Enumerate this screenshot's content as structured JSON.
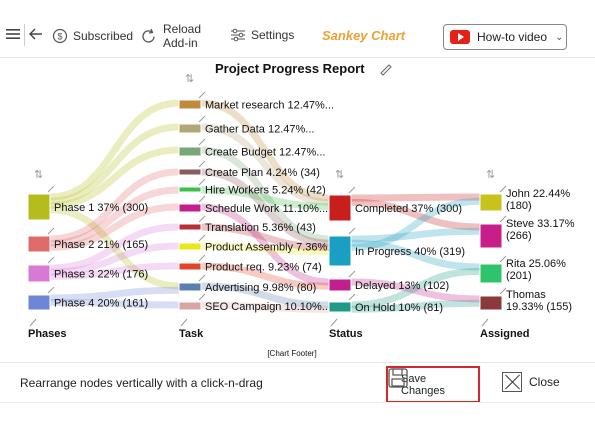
{
  "toolbar": {
    "subscribed_label": "Subscribed",
    "reload_label_line1": "Reload",
    "reload_label_line2": "Add-in",
    "settings_label": "Settings",
    "brand": "Sankey Chart",
    "howto_label": "How-to video"
  },
  "chart_data": {
    "type": "sankey",
    "title": "Project Progress Report",
    "footer": "[Chart Footer]",
    "stage_labels": [
      "Phases",
      "Task",
      "Status",
      "Assigned"
    ],
    "nodes": [
      {
        "stage": 0,
        "label": "Phase 1 37% (300)",
        "color": "#b5bd1c"
      },
      {
        "stage": 0,
        "label": "Phase 2 21% (165)",
        "color": "#e06b6b"
      },
      {
        "stage": 0,
        "label": "Phase 3 22% (176)",
        "color": "#d67ad6"
      },
      {
        "stage": 0,
        "label": "Phase 4 20% (161)",
        "color": "#6f86d8"
      },
      {
        "stage": 1,
        "label": "Market research 12.47%...",
        "color": "#c08a3a"
      },
      {
        "stage": 1,
        "label": "Gather Data 12.47%...",
        "color": "#b3a778"
      },
      {
        "stage": 1,
        "label": "Create Budget 12.47%...",
        "color": "#79a779"
      },
      {
        "stage": 1,
        "label": "Create Plan 4.24% (34)",
        "color": "#8c5b5b"
      },
      {
        "stage": 1,
        "label": "Hire Workers 5.24% (42)",
        "color": "#3cc04a"
      },
      {
        "stage": 1,
        "label": "Schedule Work 11.10%...",
        "color": "#c21f8d"
      },
      {
        "stage": 1,
        "label": "Translation 5.36% (43)",
        "color": "#b82d3a"
      },
      {
        "stage": 1,
        "label": "Product Assembly 7.36%...",
        "color": "#e8e81c"
      },
      {
        "stage": 1,
        "label": "Product req. 9.23% (74)",
        "color": "#e2462a"
      },
      {
        "stage": 1,
        "label": "Advertising 9.98% (80)",
        "color": "#5b7fb0"
      },
      {
        "stage": 1,
        "label": "SEO Campaign 10.10%...",
        "color": "#d8a4a4"
      },
      {
        "stage": 2,
        "label": "Completed 37% (300)",
        "color": "#c81e1e"
      },
      {
        "stage": 2,
        "label": "In Progress 40% (319)",
        "color": "#1a9fc2"
      },
      {
        "stage": 2,
        "label": "Delayed 13% (102)",
        "color": "#c21f8d"
      },
      {
        "stage": 2,
        "label": "On Hold 10% (81)",
        "color": "#1f9a86"
      },
      {
        "stage": 3,
        "label": "John 22.44% (180)",
        "color": "#c9c21c"
      },
      {
        "stage": 3,
        "label": "Steve 33.17% (266)",
        "color": "#c81e8a"
      },
      {
        "stage": 3,
        "label": "Rita 25.06% (201)",
        "color": "#2ec46b"
      },
      {
        "stage": 3,
        "label": "Thomas 19.33% (155)",
        "color": "#8a3a3a"
      }
    ]
  },
  "footer": {
    "hint": "Rearrange nodes vertically with a click-n-drag",
    "save_line1": "Save",
    "save_line2": "Changes",
    "close_label": "Close"
  }
}
